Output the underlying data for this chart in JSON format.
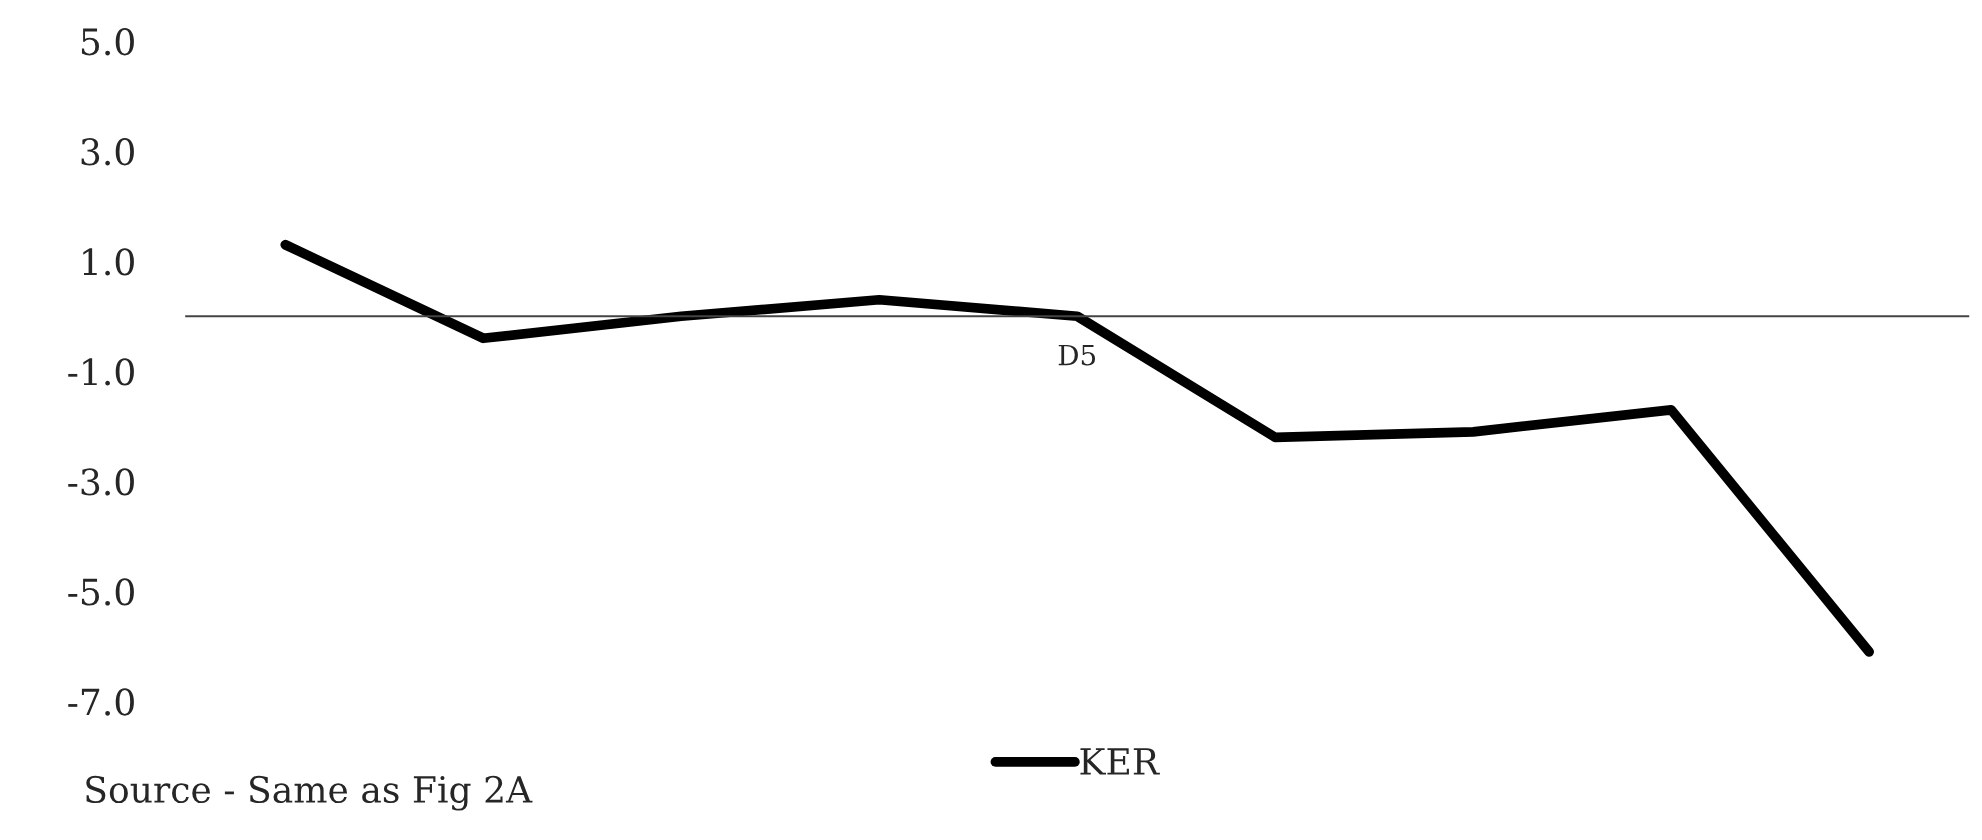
{
  "chart_data": {
    "type": "line",
    "categories": [
      null,
      null,
      null,
      null,
      "D5",
      null,
      null,
      null,
      null
    ],
    "series": [
      {
        "name": "KER",
        "color": "#000000",
        "values": [
          1.3,
          -0.4,
          0.0,
          0.3,
          0.0,
          -2.2,
          -2.1,
          -1.7,
          -6.1
        ]
      }
    ],
    "ylim": [
      -7,
      5
    ],
    "yticks": [
      {
        "value": 5,
        "label": "5.0"
      },
      {
        "value": 3,
        "label": "3.0"
      },
      {
        "value": 1,
        "label": "1.0"
      },
      {
        "value": -1,
        "label": "-1.0"
      },
      {
        "value": -3,
        "label": "-3.0"
      },
      {
        "value": -5,
        "label": "-5.0"
      },
      {
        "value": -7,
        "label": "-7.0"
      }
    ],
    "annotations": [
      "Source - Same as Fig 2A"
    ],
    "legend": "bottom",
    "grid": false,
    "marker": "none",
    "line_style": "solid"
  }
}
